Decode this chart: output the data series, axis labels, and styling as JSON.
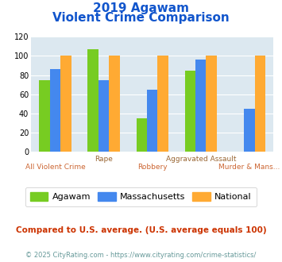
{
  "title_line1": "2019 Agawam",
  "title_line2": "Violent Crime Comparison",
  "categories": [
    "All Violent Crime",
    "Rape",
    "Robbery",
    "Aggravated Assault",
    "Murder & Mans..."
  ],
  "series": {
    "Agawam": [
      75,
      107,
      35,
      85,
      0
    ],
    "Massachusetts": [
      86,
      75,
      65,
      96,
      45
    ],
    "National": [
      100,
      100,
      100,
      100,
      100
    ]
  },
  "colors": {
    "Agawam": "#77cc22",
    "Massachusetts": "#4488ee",
    "National": "#ffaa33"
  },
  "ylim": [
    0,
    120
  ],
  "yticks": [
    0,
    20,
    40,
    60,
    80,
    100,
    120
  ],
  "bg_color": "#dce8f0",
  "title_color": "#1155cc",
  "xlabel_top_color": "#996633",
  "xlabel_bottom_color": "#cc6633",
  "footer_note": "Compared to U.S. average. (U.S. average equals 100)",
  "footer_copy": "© 2025 CityRating.com - https://www.cityrating.com/crime-statistics/",
  "footer_note_color": "#cc3300",
  "footer_copy_color": "#669999",
  "bar_width": 0.22
}
